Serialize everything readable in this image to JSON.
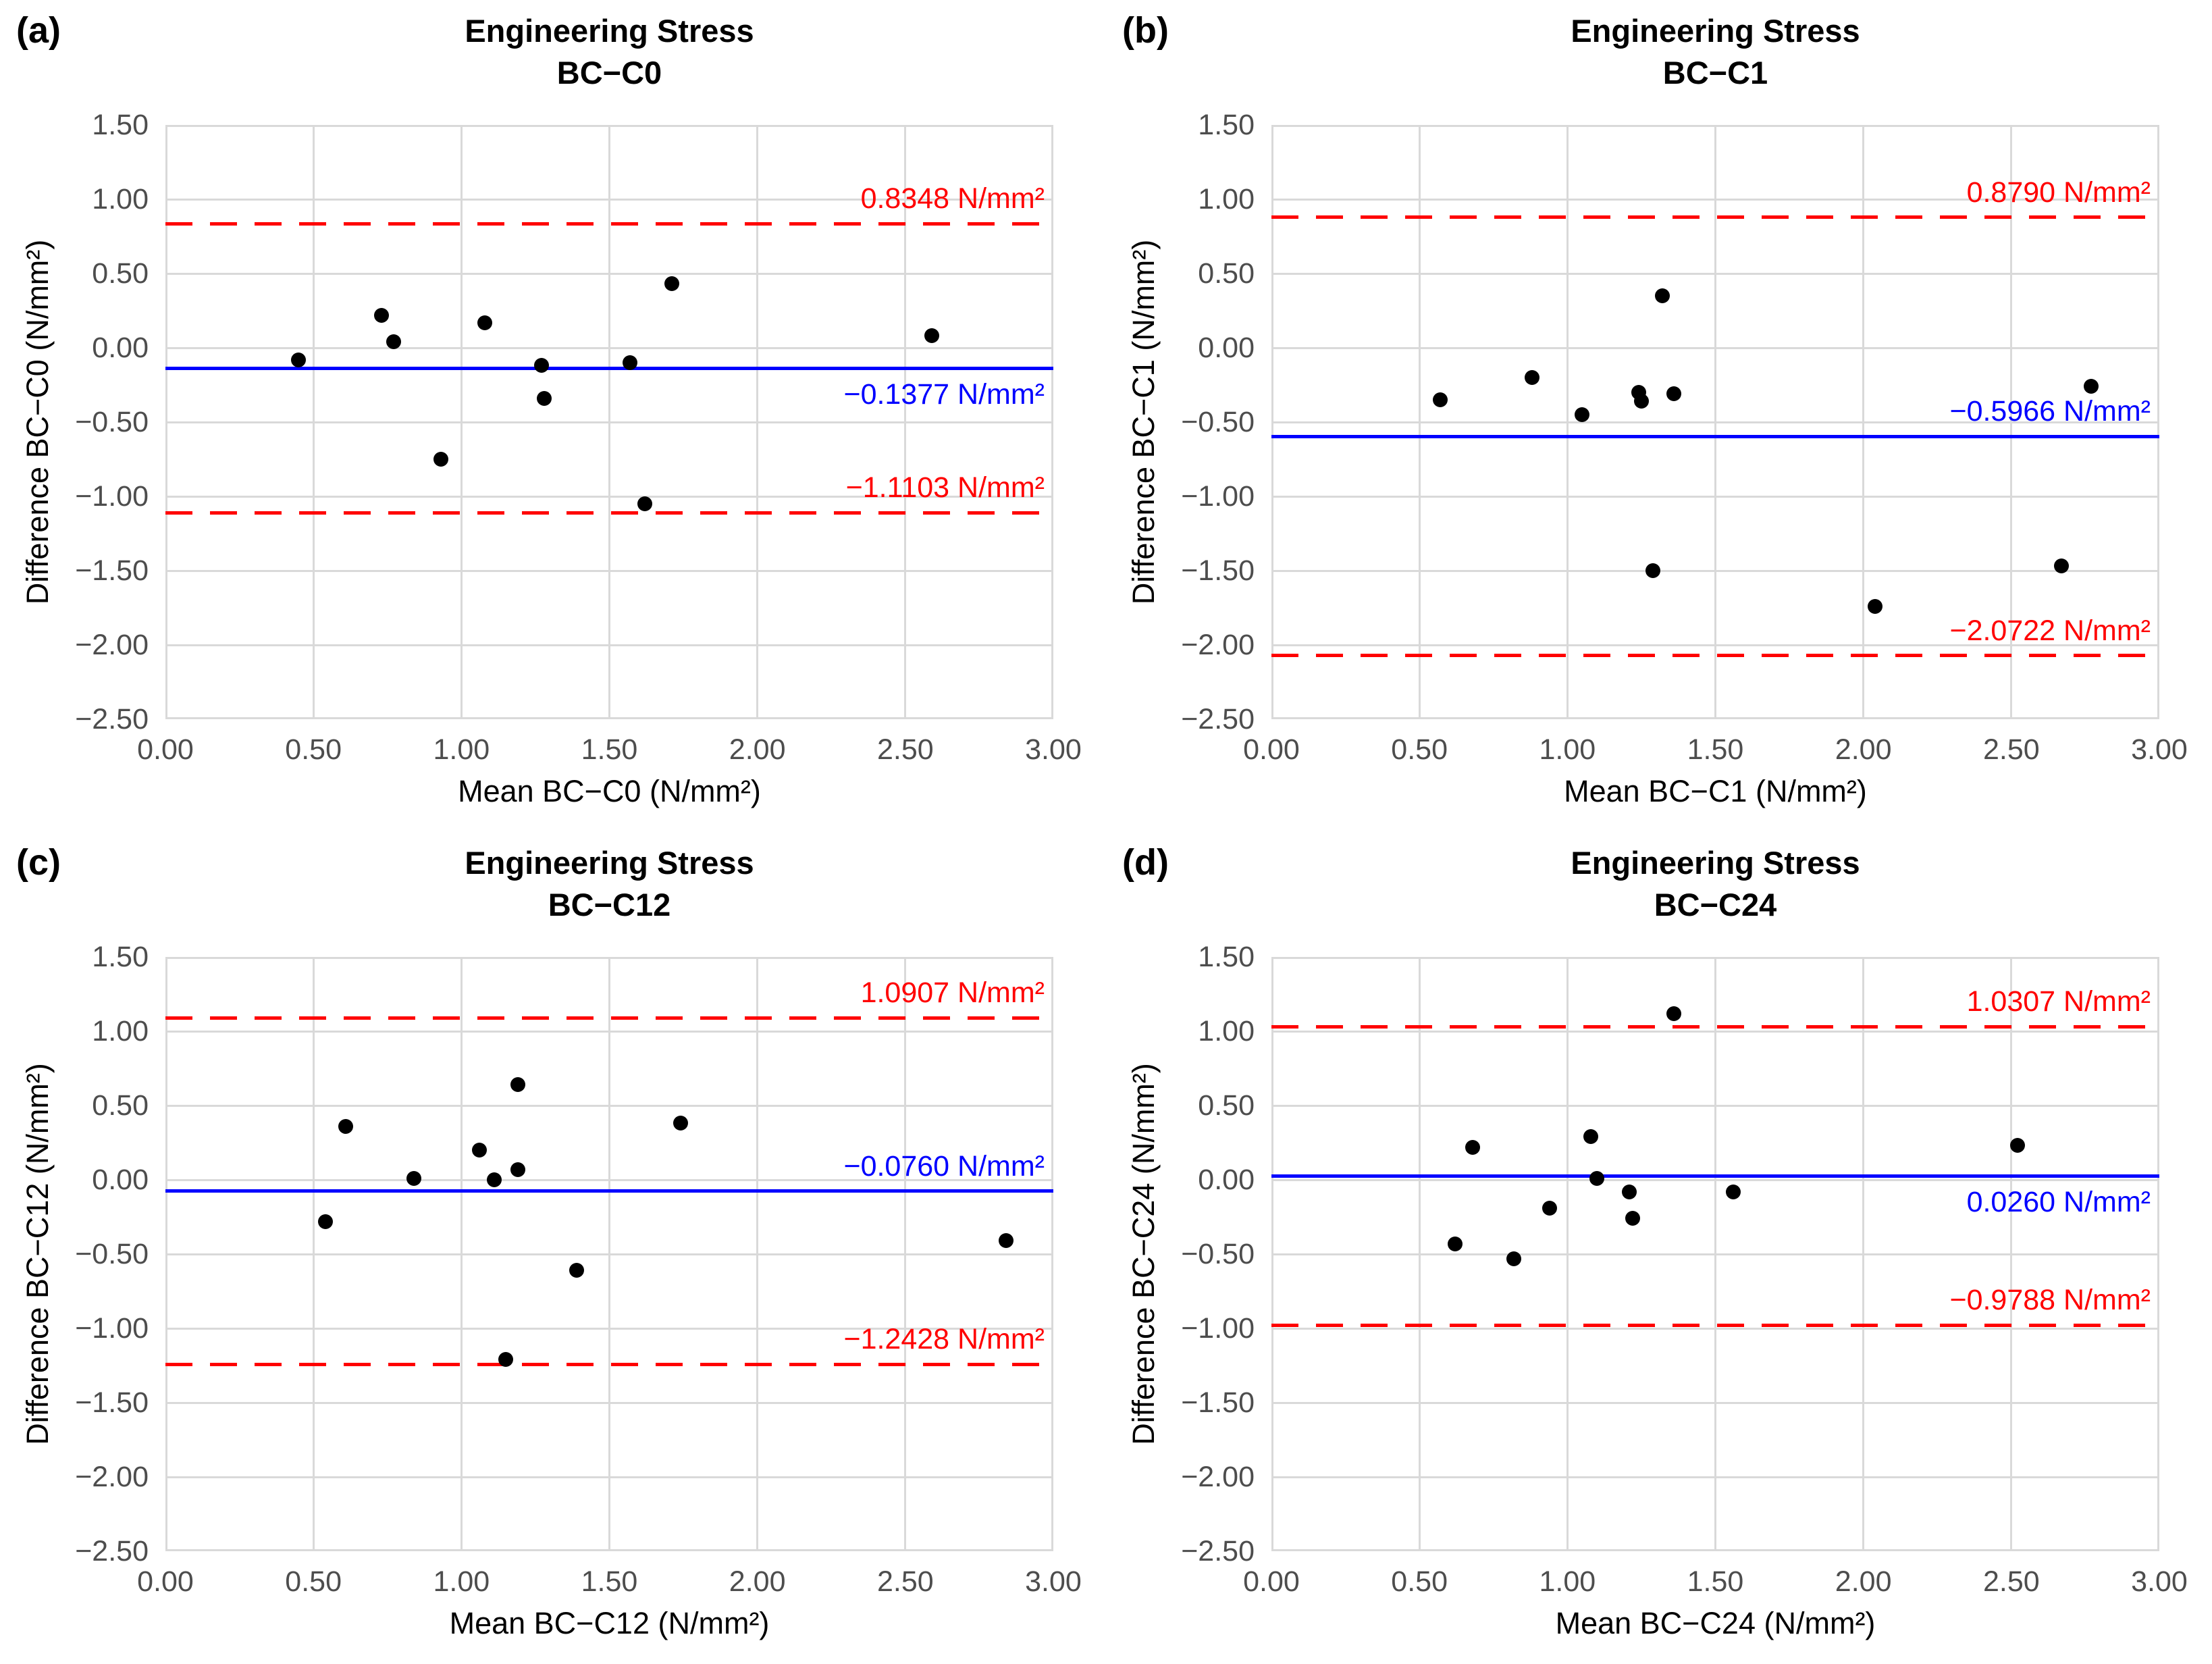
{
  "figure": {
    "background": "#ffffff",
    "grid_color": "#d9d9d9",
    "point_color": "#000000",
    "mean_line_color": "#0000ff",
    "limit_line_color": "#ff0000",
    "tick_label_color": "#4d4d4d",
    "text_color": "#000000"
  },
  "axes": {
    "x_ticks": [
      "0.00",
      "0.50",
      "1.00",
      "1.50",
      "2.00",
      "2.50",
      "3.00"
    ],
    "x_tick_values": [
      0,
      0.5,
      1,
      1.5,
      2,
      2.5,
      3
    ],
    "y_ticks": [
      "1.50",
      "1.00",
      "0.50",
      "0.00",
      "−0.50",
      "−1.00",
      "−1.50",
      "−2.00",
      "−2.50"
    ],
    "y_tick_values": [
      1.5,
      1,
      0.5,
      0,
      -0.5,
      -1,
      -1.5,
      -2,
      -2.5
    ],
    "x_range": [
      0,
      3
    ],
    "y_range": [
      -2.5,
      1.5
    ],
    "grid": true
  },
  "chart_data": [
    {
      "type": "scatter",
      "panel_label": "(a)",
      "title": "Engineering Stress",
      "subtitle": "BC−C0",
      "xlabel": "Mean BC−C0 (N/mm²)",
      "ylabel": "Difference BC−C0 (N/mm²)",
      "xlim": [
        0,
        3
      ],
      "ylim": [
        -2.5,
        1.5
      ],
      "points": [
        [
          0.45,
          -0.08
        ],
        [
          0.73,
          0.22
        ],
        [
          0.77,
          0.04
        ],
        [
          0.93,
          -0.75
        ],
        [
          1.08,
          0.17
        ],
        [
          1.27,
          -0.12
        ],
        [
          1.28,
          -0.34
        ],
        [
          1.57,
          -0.1
        ],
        [
          1.62,
          -1.05
        ],
        [
          1.71,
          0.43
        ],
        [
          2.59,
          0.08
        ]
      ],
      "upper_limit": {
        "value": 0.8348,
        "label": "0.8348 N/mm²"
      },
      "mean_line": {
        "value": -0.1377,
        "label": "−0.1377 N/mm²",
        "label_position": "below"
      },
      "lower_limit": {
        "value": -1.1103,
        "label": "−1.1103 N/mm²"
      }
    },
    {
      "type": "scatter",
      "panel_label": "(b)",
      "title": "Engineering Stress",
      "subtitle": "BC−C1",
      "xlabel": "Mean BC−C1 (N/mm²)",
      "ylabel": "Difference BC−C1 (N/mm²)",
      "xlim": [
        0,
        3
      ],
      "ylim": [
        -2.5,
        1.5
      ],
      "points": [
        [
          0.57,
          -0.35
        ],
        [
          0.88,
          -0.2
        ],
        [
          1.05,
          -0.45
        ],
        [
          1.24,
          -0.3
        ],
        [
          1.25,
          -0.36
        ],
        [
          1.32,
          0.35
        ],
        [
          1.36,
          -0.31
        ],
        [
          1.29,
          -1.5
        ],
        [
          2.04,
          -1.74
        ],
        [
          2.67,
          -1.47
        ],
        [
          2.77,
          -0.26
        ]
      ],
      "upper_limit": {
        "value": 0.879,
        "label": "0.8790 N/mm²"
      },
      "mean_line": {
        "value": -0.5966,
        "label": "−0.5966 N/mm²",
        "label_position": "above"
      },
      "lower_limit": {
        "value": -2.0722,
        "label": "−2.0722 N/mm²"
      }
    },
    {
      "type": "scatter",
      "panel_label": "(c)",
      "title": "Engineering Stress",
      "subtitle": "BC−C12",
      "xlabel": "Mean BC−C12 (N/mm²)",
      "ylabel": "Difference BC−C12 (N/mm²)",
      "xlim": [
        0,
        3
      ],
      "ylim": [
        -2.5,
        1.5
      ],
      "points": [
        [
          0.54,
          -0.28
        ],
        [
          0.61,
          0.36
        ],
        [
          0.84,
          0.01
        ],
        [
          1.06,
          0.2
        ],
        [
          1.11,
          0.0
        ],
        [
          1.19,
          0.07
        ],
        [
          1.19,
          0.64
        ],
        [
          1.15,
          -1.21
        ],
        [
          1.39,
          -0.61
        ],
        [
          1.74,
          0.38
        ],
        [
          2.84,
          -0.41
        ]
      ],
      "upper_limit": {
        "value": 1.0907,
        "label": "1.0907 N/mm²"
      },
      "mean_line": {
        "value": -0.076,
        "label": "−0.0760 N/mm²",
        "label_position": "above"
      },
      "lower_limit": {
        "value": -1.2428,
        "label": "−1.2428 N/mm²"
      }
    },
    {
      "type": "scatter",
      "panel_label": "(d)",
      "title": "Engineering Stress",
      "subtitle": "BC−C24",
      "xlabel": "Mean BC−C24 (N/mm²)",
      "ylabel": "Difference BC−C24 (N/mm²)",
      "xlim": [
        0,
        3
      ],
      "ylim": [
        -2.5,
        1.5
      ],
      "points": [
        [
          0.62,
          -0.43
        ],
        [
          0.68,
          0.22
        ],
        [
          0.82,
          -0.53
        ],
        [
          0.94,
          -0.19
        ],
        [
          1.08,
          0.29
        ],
        [
          1.1,
          0.01
        ],
        [
          1.21,
          -0.08
        ],
        [
          1.22,
          -0.26
        ],
        [
          1.36,
          1.12
        ],
        [
          1.56,
          -0.08
        ],
        [
          2.52,
          0.23
        ]
      ],
      "upper_limit": {
        "value": 1.0307,
        "label": "1.0307 N/mm²"
      },
      "mean_line": {
        "value": 0.026,
        "label": "0.0260 N/mm²",
        "label_position": "below"
      },
      "lower_limit": {
        "value": -0.9788,
        "label": "−0.9788 N/mm²"
      }
    }
  ]
}
